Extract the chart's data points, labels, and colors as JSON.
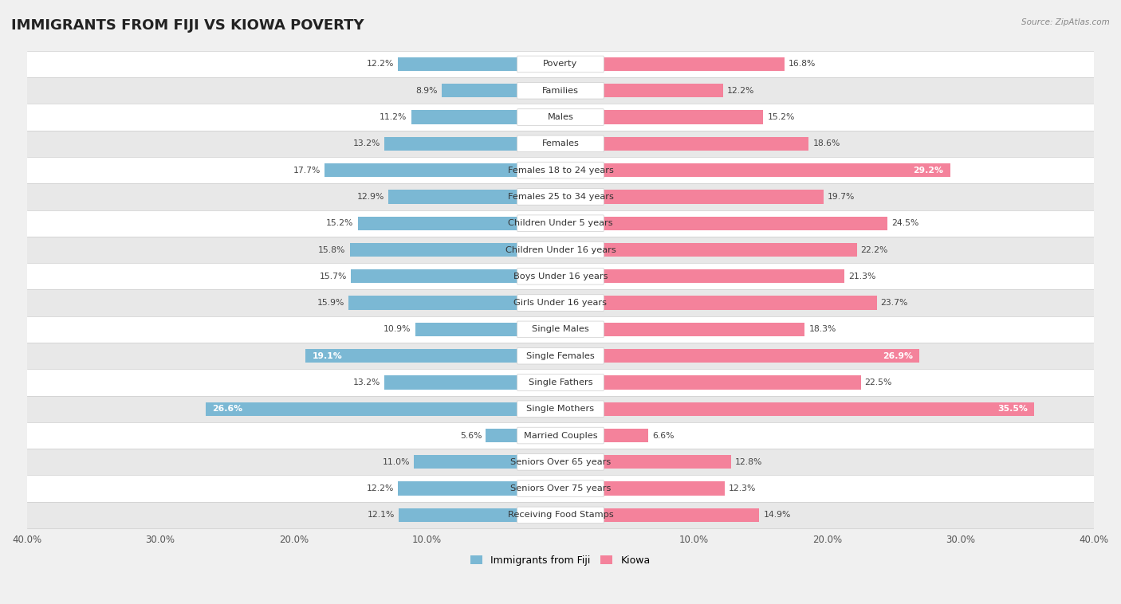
{
  "title": "IMMIGRANTS FROM FIJI VS KIOWA POVERTY",
  "source": "Source: ZipAtlas.com",
  "categories": [
    "Poverty",
    "Families",
    "Males",
    "Females",
    "Females 18 to 24 years",
    "Females 25 to 34 years",
    "Children Under 5 years",
    "Children Under 16 years",
    "Boys Under 16 years",
    "Girls Under 16 years",
    "Single Males",
    "Single Females",
    "Single Fathers",
    "Single Mothers",
    "Married Couples",
    "Seniors Over 65 years",
    "Seniors Over 75 years",
    "Receiving Food Stamps"
  ],
  "fiji_values": [
    12.2,
    8.9,
    11.2,
    13.2,
    17.7,
    12.9,
    15.2,
    15.8,
    15.7,
    15.9,
    10.9,
    19.1,
    13.2,
    26.6,
    5.6,
    11.0,
    12.2,
    12.1
  ],
  "kiowa_values": [
    16.8,
    12.2,
    15.2,
    18.6,
    29.2,
    19.7,
    24.5,
    22.2,
    21.3,
    23.7,
    18.3,
    26.9,
    22.5,
    35.5,
    6.6,
    12.8,
    12.3,
    14.9
  ],
  "fiji_color": "#7bb8d4",
  "kiowa_color": "#f4829b",
  "fiji_label": "Immigrants from Fiji",
  "kiowa_label": "Kiowa",
  "axis_max": 40.0,
  "bg_color": "#f0f0f0",
  "row_color_even": "#ffffff",
  "row_color_odd": "#e8e8e8",
  "title_fontsize": 13,
  "label_fontsize": 8.2,
  "value_fontsize": 7.8,
  "inside_label_threshold_fiji": 19.0,
  "inside_label_threshold_kiowa": 26.0
}
